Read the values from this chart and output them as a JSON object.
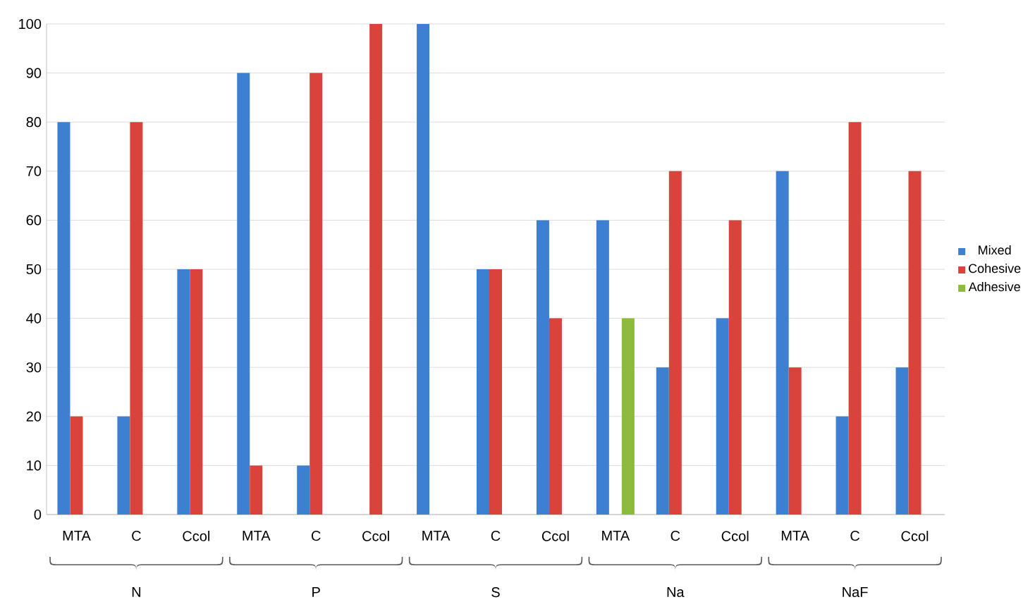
{
  "chart_data": {
    "type": "bar",
    "categories": [
      "MTA",
      "C",
      "Ccol",
      "MTA",
      "C",
      "Ccol",
      "MTA",
      "C",
      "Ccol",
      "MTA",
      "C",
      "Ccol",
      "MTA",
      "C",
      "Ccol"
    ],
    "series": [
      {
        "name": "Mixed",
        "color": "#3d7fd0",
        "values": [
          80,
          20,
          50,
          90,
          10,
          0,
          100,
          50,
          60,
          60,
          30,
          40,
          70,
          20,
          30
        ]
      },
      {
        "name": "Cohesive",
        "color": "#d9433b",
        "values": [
          20,
          80,
          50,
          10,
          90,
          100,
          0,
          50,
          40,
          0,
          70,
          60,
          30,
          80,
          70
        ]
      },
      {
        "name": "Adhesive",
        "color": "#8dbb3a",
        "values": [
          0,
          0,
          0,
          0,
          0,
          0,
          0,
          0,
          0,
          40,
          0,
          0,
          0,
          0,
          0
        ]
      }
    ],
    "annotations": [
      "N",
      "P",
      "S",
      "Na",
      "NaF"
    ],
    "ylim": [
      0,
      100
    ],
    "yticks": [
      0,
      10,
      20,
      30,
      40,
      50,
      60,
      70,
      80,
      90,
      100
    ],
    "grid": "y",
    "legend": "right"
  }
}
